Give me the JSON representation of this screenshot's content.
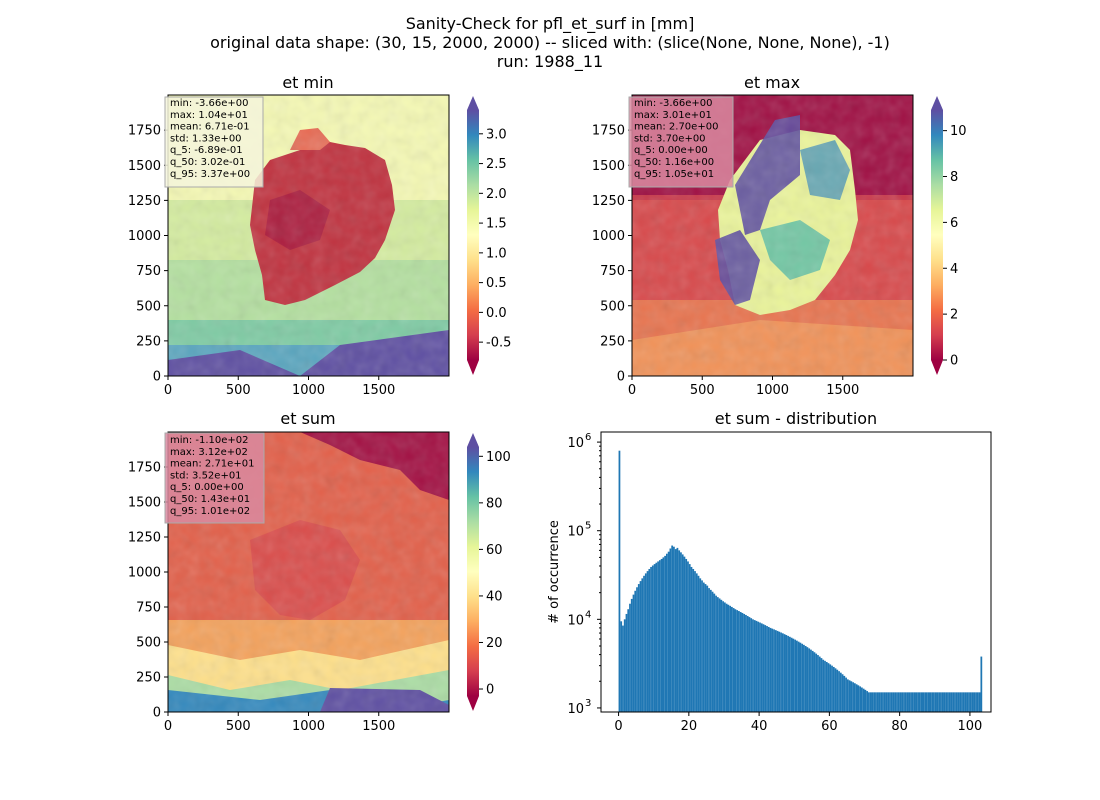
{
  "suptitle": [
    "Sanity-Check for pfl_et_surf in [mm]",
    "original data shape: (30, 15, 2000, 2000) -- sliced with: (slice(None, None, None), -1)",
    "run: 1988_11"
  ],
  "chart_data": [
    {
      "type": "heatmap",
      "title": "et min",
      "colormap": "Spectral",
      "xlim": [
        0,
        2000
      ],
      "ylim": [
        0,
        2000
      ],
      "x_ticks": [
        0,
        500,
        1000,
        1500
      ],
      "y_ticks": [
        0,
        250,
        500,
        750,
        1000,
        1250,
        1500,
        1750
      ],
      "colorbar": {
        "range": [
          -0.8,
          3.4
        ],
        "ticks": [
          "-0.5",
          "0.0",
          "0.5",
          "1.0",
          "1.5",
          "2.0",
          "2.5",
          "3.0"
        ],
        "extend": "both"
      },
      "stats_box_color": "#f5f5dc",
      "stats": [
        "min: -3.66e+00",
        "max: 1.04e+01",
        "mean: 6.71e-01",
        "std: 1.33e+00",
        "q_5: -6.89e-01",
        "q_50: 3.02e-01",
        "q_95: 3.37e+00"
      ]
    },
    {
      "type": "heatmap",
      "title": "et max",
      "colormap": "Spectral",
      "xlim": [
        0,
        2000
      ],
      "ylim": [
        0,
        2000
      ],
      "x_ticks": [
        0,
        500,
        1000,
        1500
      ],
      "y_ticks": [
        0,
        250,
        500,
        750,
        1000,
        1250,
        1500,
        1750
      ],
      "colorbar": {
        "range": [
          0,
          10.9
        ],
        "ticks": [
          "0",
          "2",
          "4",
          "6",
          "8",
          "10"
        ],
        "extend": "both"
      },
      "stats_box_color": "#d98aa0",
      "stats": [
        "min: -3.66e+00",
        "max: 3.01e+01",
        "mean: 2.70e+00",
        "std: 3.70e+00",
        "q_5: 0.00e+00",
        "q_50: 1.16e+00",
        "q_95: 1.05e+01"
      ]
    },
    {
      "type": "heatmap",
      "title": "et sum",
      "colormap": "Spectral",
      "xlim": [
        0,
        2000
      ],
      "ylim": [
        0,
        2000
      ],
      "x_ticks": [
        0,
        500,
        1000,
        1500
      ],
      "y_ticks": [
        0,
        250,
        500,
        750,
        1000,
        1250,
        1500,
        1750
      ],
      "colorbar": {
        "range": [
          -3,
          104
        ],
        "ticks": [
          "0",
          "20",
          "40",
          "60",
          "80",
          "100"
        ],
        "extend": "both"
      },
      "stats_box_color": "#d98aa0",
      "stats": [
        "min: -1.10e+02",
        "max: 3.12e+02",
        "mean: 2.71e+01",
        "std: 3.52e+01",
        "q_5: 0.00e+00",
        "q_50: 1.43e+01",
        "q_95: 1.01e+02"
      ]
    },
    {
      "type": "bar",
      "title": "et sum - distribution",
      "ylabel": "# of occurrence",
      "yscale": "log",
      "xlim": [
        -5,
        106
      ],
      "ylim": [
        900,
        1300000
      ],
      "x_ticks": [
        "0",
        "20",
        "40",
        "60",
        "80",
        "100"
      ],
      "y_tick_labels": [
        "10",
        "10",
        "10",
        "10"
      ],
      "y_tick_exponents": [
        "3",
        "4",
        "5",
        "6"
      ],
      "bar_color": "#1f77b4",
      "bin_width": 0.5,
      "x_start": 0,
      "values": [
        800000,
        9500,
        8500,
        10000,
        11500,
        13000,
        15000,
        17000,
        19000,
        21000,
        23000,
        25000,
        27000,
        29000,
        31000,
        33000,
        35000,
        37000,
        39000,
        40500,
        42000,
        43500,
        45000,
        46500,
        48000,
        50000,
        52000,
        55000,
        58000,
        63000,
        68000,
        66000,
        62000,
        64000,
        60000,
        57000,
        54000,
        51000,
        48000,
        45000,
        42000,
        39000,
        37000,
        35000,
        33000,
        31000,
        29000,
        27500,
        26000,
        25000,
        24000,
        22500,
        21500,
        20500,
        19500,
        18500,
        17800,
        17200,
        16600,
        16000,
        15500,
        15000,
        14600,
        14200,
        13800,
        13400,
        13000,
        12700,
        12400,
        12100,
        11800,
        11500,
        11200,
        10900,
        10600,
        10300,
        10000,
        9800,
        9600,
        9400,
        9200,
        9000,
        8800,
        8600,
        8400,
        8200,
        8000,
        7850,
        7700,
        7550,
        7400,
        7250,
        7100,
        6950,
        6800,
        6650,
        6500,
        6350,
        6200,
        6050,
        5900,
        5750,
        5600,
        5450,
        5300,
        5150,
        5000,
        4850,
        4700,
        4550,
        4400,
        4250,
        4100,
        3950,
        3800,
        3650,
        3500,
        3400,
        3300,
        3200,
        3100,
        3000,
        2900,
        2800,
        2700,
        2600,
        2500,
        2400,
        2300,
        2200,
        2100,
        2050,
        2000,
        1950,
        1900,
        1850,
        1800,
        1750,
        1700,
        1650,
        1600,
        1550,
        1500,
        1500,
        1500,
        1500,
        1500,
        1500,
        1500,
        1500,
        1500,
        1500,
        1500,
        1500,
        1500,
        1500,
        1500,
        1500,
        1500,
        1500,
        1500,
        1500,
        1500,
        1500,
        1500,
        1500,
        1500,
        1500,
        1500,
        1500,
        1500,
        1500,
        1500,
        1500,
        1500,
        1500,
        1500,
        1500,
        1500,
        1500,
        1500,
        1500,
        1500,
        1500,
        1500,
        1500,
        1500,
        1500,
        1500,
        1500,
        1500,
        1500,
        1500,
        1500,
        1500,
        1500,
        1500,
        1500,
        1500,
        1500,
        1500,
        1500,
        1500,
        1500,
        1500,
        1500,
        3800
      ]
    }
  ]
}
